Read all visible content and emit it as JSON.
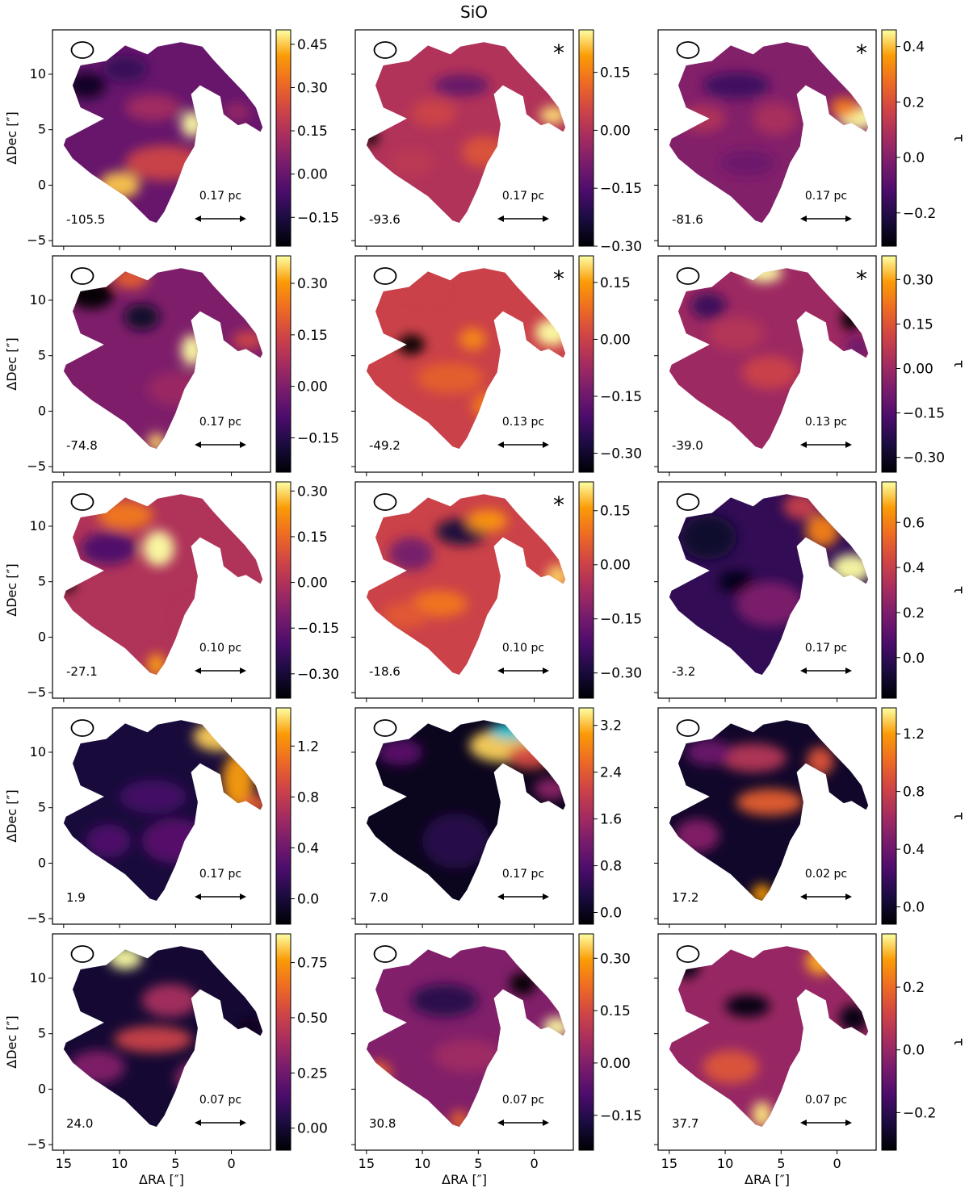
{
  "figure": {
    "title": "SiO"
  },
  "chart_data": {
    "type": "heatmap",
    "title": "SiO",
    "xlabel": "ΔRA [″]",
    "ylabel": "ΔDec [″]",
    "colorbar_label": "τ",
    "colormap": "inferno",
    "xlim": [
      16,
      -3.5
    ],
    "ylim": [
      -5.5,
      14
    ],
    "xticks": [
      15,
      10,
      5,
      0
    ],
    "yticks": [
      -5,
      0,
      5,
      10
    ],
    "saturation_color": "#22c3d6",
    "panels": [
      {
        "velocity": "-105.5",
        "scale_label": "0.17 pc",
        "asterisk": false,
        "cbar_ticks": [
          -0.15,
          0.0,
          0.15,
          0.3,
          0.45
        ],
        "cbar_labels": [
          "−0.15",
          "0.00",
          "0.15",
          "0.30",
          "0.45"
        ],
        "vmin": -0.25,
        "vmax": 0.5
      },
      {
        "velocity": "-93.6",
        "scale_label": "0.17 pc",
        "asterisk": true,
        "cbar_ticks": [
          -0.3,
          -0.15,
          0.0,
          0.15
        ],
        "cbar_labels": [
          "−0.30",
          "−0.15",
          "0.00",
          "0.15"
        ],
        "vmin": -0.3,
        "vmax": 0.26
      },
      {
        "velocity": "-81.6",
        "scale_label": "0.17 pc",
        "asterisk": true,
        "cbar_ticks": [
          -0.2,
          0.0,
          0.2,
          0.4
        ],
        "cbar_labels": [
          "−0.2",
          "0.0",
          "0.2",
          "0.4"
        ],
        "vmin": -0.32,
        "vmax": 0.46
      },
      {
        "velocity": "-74.8",
        "scale_label": "0.17 pc",
        "asterisk": false,
        "cbar_ticks": [
          -0.15,
          0.0,
          0.15,
          0.3
        ],
        "cbar_labels": [
          "−0.15",
          "0.00",
          "0.15",
          "0.30"
        ],
        "vmin": -0.25,
        "vmax": 0.38
      },
      {
        "velocity": "-49.2",
        "scale_label": "0.13 pc",
        "asterisk": true,
        "cbar_ticks": [
          -0.3,
          -0.15,
          0.0,
          0.15
        ],
        "cbar_labels": [
          "−0.30",
          "−0.15",
          "0.00",
          "0.15"
        ],
        "vmin": -0.35,
        "vmax": 0.22
      },
      {
        "velocity": "-39.0",
        "scale_label": "0.13 pc",
        "asterisk": true,
        "cbar_ticks": [
          -0.3,
          -0.15,
          0.0,
          0.15,
          0.3
        ],
        "cbar_labels": [
          "−0.30",
          "−0.15",
          "0.00",
          "0.15",
          "0.30"
        ],
        "vmin": -0.35,
        "vmax": 0.38
      },
      {
        "velocity": "-27.1",
        "scale_label": "0.10 pc",
        "asterisk": false,
        "cbar_ticks": [
          -0.3,
          -0.15,
          0.0,
          0.15,
          0.3
        ],
        "cbar_labels": [
          "−0.30",
          "−0.15",
          "0.00",
          "0.15",
          "0.30"
        ],
        "vmin": -0.38,
        "vmax": 0.33
      },
      {
        "velocity": "-18.6",
        "scale_label": "0.10 pc",
        "asterisk": true,
        "cbar_ticks": [
          -0.3,
          -0.15,
          0.0,
          0.15
        ],
        "cbar_labels": [
          "−0.30",
          "−0.15",
          "0.00",
          "0.15"
        ],
        "vmin": -0.37,
        "vmax": 0.23
      },
      {
        "velocity": "-3.2",
        "scale_label": "0.17 pc",
        "asterisk": false,
        "cbar_ticks": [
          0.0,
          0.2,
          0.4,
          0.6
        ],
        "cbar_labels": [
          "0.0",
          "0.2",
          "0.4",
          "0.6"
        ],
        "vmin": -0.18,
        "vmax": 0.78
      },
      {
        "velocity": "1.9",
        "scale_label": "0.17 pc",
        "asterisk": false,
        "cbar_ticks": [
          0.0,
          0.4,
          0.8,
          1.2
        ],
        "cbar_labels": [
          "0.0",
          "0.4",
          "0.8",
          "1.2"
        ],
        "vmin": -0.2,
        "vmax": 1.5
      },
      {
        "velocity": "7.0",
        "scale_label": "0.17 pc",
        "asterisk": false,
        "cbar_ticks": [
          0.0,
          0.8,
          1.6,
          2.4,
          3.2
        ],
        "cbar_labels": [
          "0.0",
          "0.8",
          "1.6",
          "2.4",
          "3.2"
        ],
        "vmin": -0.2,
        "vmax": 3.5
      },
      {
        "velocity": "17.2",
        "scale_label": "0.02 pc",
        "asterisk": false,
        "cbar_ticks": [
          0.0,
          0.4,
          0.8,
          1.2
        ],
        "cbar_labels": [
          "0.0",
          "0.4",
          "0.8",
          "1.2"
        ],
        "vmin": -0.12,
        "vmax": 1.38
      },
      {
        "velocity": "24.0",
        "scale_label": "0.07 pc",
        "asterisk": false,
        "cbar_ticks": [
          0.0,
          0.25,
          0.5,
          0.75
        ],
        "cbar_labels": [
          "0.00",
          "0.25",
          "0.50",
          "0.75"
        ],
        "vmin": -0.1,
        "vmax": 0.88
      },
      {
        "velocity": "30.8",
        "scale_label": "0.07 pc",
        "asterisk": false,
        "cbar_ticks": [
          -0.15,
          0.0,
          0.15,
          0.3
        ],
        "cbar_labels": [
          "−0.15",
          "0.00",
          "0.15",
          "0.30"
        ],
        "vmin": -0.25,
        "vmax": 0.37
      },
      {
        "velocity": "37.7",
        "scale_label": "0.07 pc",
        "asterisk": false,
        "cbar_ticks": [
          -0.2,
          0.0,
          0.2
        ],
        "cbar_labels": [
          "−0.2",
          "0.0",
          "0.2"
        ],
        "vmin": -0.32,
        "vmax": 0.37
      }
    ]
  }
}
